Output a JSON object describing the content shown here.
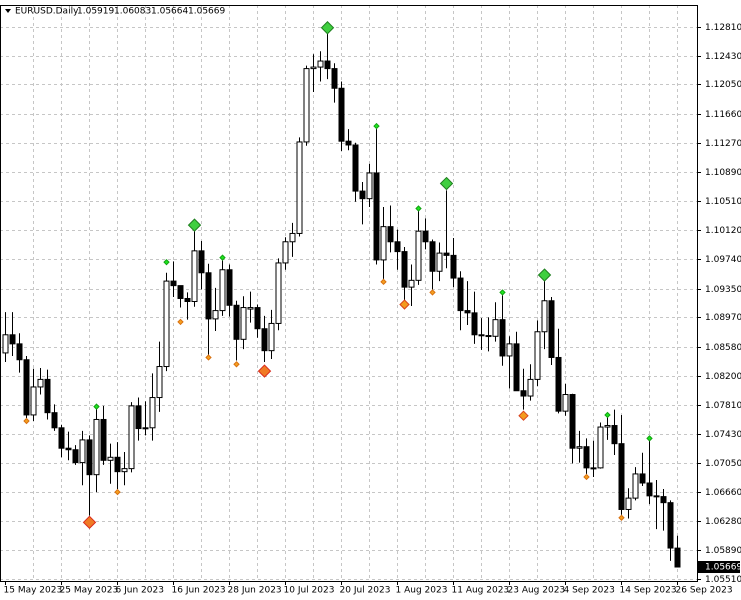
{
  "chart_data": {
    "type": "candlestick",
    "title": "EURUSD.Daily",
    "categories": [
      "15 May 2023",
      null,
      null,
      null,
      null,
      null,
      null,
      null,
      "25 May 2023",
      null,
      null,
      null,
      null,
      null,
      null,
      null,
      "6 Jun 2023",
      null,
      null,
      null,
      null,
      null,
      null,
      null,
      "16 Jun 2023",
      null,
      null,
      null,
      null,
      null,
      null,
      null,
      "28 Jun 2023",
      null,
      null,
      null,
      null,
      null,
      null,
      null,
      "10 Jul 2023",
      null,
      null,
      null,
      null,
      null,
      null,
      null,
      "20 Jul 2023",
      null,
      null,
      null,
      null,
      null,
      null,
      null,
      "1 Aug 2023",
      null,
      null,
      null,
      null,
      null,
      null,
      null,
      "11 Aug 2023",
      null,
      null,
      null,
      null,
      null,
      null,
      null,
      "23 Aug 2023",
      null,
      null,
      null,
      null,
      null,
      null,
      null,
      "4 Sep 2023",
      null,
      null,
      null,
      null,
      null,
      null,
      null,
      "14 Sep 2023",
      null,
      null,
      null,
      null,
      null,
      null,
      null,
      "26 Sep 2023"
    ],
    "ohlc": {
      "up_color": "#ffffff",
      "down_color": "#000000",
      "open": [
        1.085,
        1.0874,
        1.0862,
        1.0841,
        1.0768,
        1.0805,
        1.0815,
        1.0771,
        1.0751,
        1.0724,
        1.0722,
        1.0705,
        1.0735,
        1.0689,
        1.0762,
        1.0708,
        1.0712,
        1.0693,
        1.0697,
        1.078,
        1.075,
        1.0751,
        1.0791,
        1.0832,
        1.0945,
        1.0939,
        1.0922,
        1.0918,
        1.0985,
        1.0956,
        1.0895,
        1.0906,
        1.096,
        1.0913,
        1.0868,
        1.0908,
        1.091,
        1.0882,
        1.0853,
        1.0889,
        1.0969,
        1.0997,
        1.1008,
        1.1129,
        1.1226,
        1.1228,
        1.1236,
        1.1226,
        1.12,
        1.113,
        1.1125,
        1.1064,
        1.1054,
        1.1088,
        1.0973,
        1.1017,
        1.0997,
        1.0984,
        1.0937,
        1.0946,
        1.1011,
        1.0997,
        1.0958,
        1.0982,
        1.0979,
        1.0949,
        1.0906,
        1.0903,
        1.0874,
        1.0873,
        1.0872,
        1.0894,
        1.0846,
        1.0862,
        1.08,
        1.0793,
        1.0815,
        1.0878,
        1.0919,
        1.0844,
        1.0773,
        1.0795,
        1.0724,
        1.0726,
        1.0698,
        1.0698,
        1.0752,
        1.0754,
        1.073,
        1.0643,
        1.0658,
        1.069,
        1.0678,
        1.0661,
        1.066,
        1.0652,
        1.05919
      ],
      "high": [
        1.0904,
        1.0904,
        1.0876,
        1.0846,
        1.0829,
        1.083,
        1.0828,
        1.0782,
        1.0755,
        1.0746,
        1.0728,
        1.0747,
        1.0741,
        1.0776,
        1.078,
        1.073,
        1.0732,
        1.0719,
        1.0785,
        1.0791,
        1.0786,
        1.0823,
        1.0865,
        1.0956,
        1.0971,
        1.0939,
        1.093,
        1.1012,
        1.0998,
        1.0968,
        1.0936,
        1.0972,
        1.0967,
        1.0919,
        1.0925,
        1.0931,
        1.0914,
        1.0899,
        1.0907,
        1.0975,
        1.1003,
        1.1022,
        1.1135,
        1.123,
        1.1245,
        1.1249,
        1.1276,
        1.1233,
        1.1209,
        1.1146,
        1.1128,
        1.1076,
        1.11,
        1.1146,
        1.1043,
        1.1045,
        1.1013,
        1.099,
        1.0967,
        1.1038,
        1.1028,
        1.1,
        1.0996,
        1.1065,
        1.1002,
        1.0958,
        1.0945,
        1.0931,
        1.0896,
        1.0897,
        1.0917,
        1.0926,
        1.0872,
        1.0878,
        1.0829,
        1.0835,
        1.0893,
        1.0945,
        1.0924,
        1.0882,
        1.0809,
        1.0796,
        1.0747,
        1.0737,
        1.0734,
        1.0758,
        1.0765,
        1.0775,
        1.0768,
        1.0671,
        1.0699,
        1.0718,
        1.0734,
        1.0682,
        1.067,
        1.0655,
        1.06083
      ],
      "low": [
        1.0838,
        1.0846,
        1.0824,
        1.0764,
        1.076,
        1.0795,
        1.0762,
        1.0747,
        1.0712,
        1.0708,
        1.0702,
        1.0675,
        1.0635,
        1.0666,
        1.0702,
        1.0677,
        1.067,
        1.0675,
        1.0692,
        1.0734,
        1.0741,
        1.0734,
        1.0772,
        1.0826,
        1.0924,
        1.091,
        1.0894,
        1.0911,
        1.0934,
        1.0848,
        1.0879,
        1.0899,
        1.0898,
        1.084,
        1.0855,
        1.089,
        1.087,
        1.0838,
        1.0842,
        1.088,
        1.096,
        1.0977,
        1.1004,
        1.1124,
        1.1195,
        1.1209,
        1.1212,
        1.1181,
        1.1117,
        1.1118,
        1.105,
        1.102,
        1.1043,
        1.0967,
        1.0948,
        1.0983,
        1.096,
        1.092,
        1.0912,
        1.094,
        1.0987,
        1.0934,
        1.0945,
        1.0962,
        1.0937,
        1.088,
        1.0887,
        1.0862,
        1.0854,
        1.0852,
        1.0865,
        1.0833,
        1.0803,
        1.08,
        1.0775,
        1.0787,
        1.0806,
        1.0855,
        1.0834,
        1.077,
        1.0767,
        1.0704,
        1.0705,
        1.069,
        1.0686,
        1.0697,
        1.0735,
        1.0715,
        1.0636,
        1.0631,
        1.0655,
        1.0674,
        1.065,
        1.0617,
        1.0615,
        1.0575,
        1.05664
      ],
      "close": [
        1.0874,
        1.0862,
        1.0841,
        1.0768,
        1.0805,
        1.0815,
        1.0771,
        1.0751,
        1.0724,
        1.0722,
        1.0705,
        1.0735,
        1.0689,
        1.0762,
        1.0708,
        1.0712,
        1.0693,
        1.0697,
        1.078,
        1.075,
        1.0751,
        1.0791,
        1.0832,
        1.0945,
        1.0939,
        1.0922,
        1.0918,
        1.0985,
        1.0956,
        1.0895,
        1.0906,
        1.096,
        1.0913,
        1.0868,
        1.091,
        1.091,
        1.0882,
        1.0853,
        1.0889,
        1.0969,
        1.0997,
        1.1008,
        1.1129,
        1.1226,
        1.1228,
        1.1236,
        1.1226,
        1.12,
        1.113,
        1.1125,
        1.1064,
        1.1054,
        1.1088,
        1.0973,
        1.1017,
        1.0997,
        1.0984,
        1.0937,
        1.0946,
        1.1011,
        1.0997,
        1.0958,
        1.0982,
        1.0979,
        1.0949,
        1.0906,
        1.0903,
        1.0874,
        1.0873,
        1.0872,
        1.0894,
        1.0846,
        1.0862,
        1.08,
        1.0793,
        1.0815,
        1.0878,
        1.0919,
        1.0844,
        1.0773,
        1.0795,
        1.0724,
        1.0726,
        1.0698,
        1.0698,
        1.0752,
        1.0754,
        1.073,
        1.0643,
        1.0658,
        1.069,
        1.0678,
        1.0661,
        1.066,
        1.0652,
        1.0592,
        1.05669
      ]
    },
    "overlays": [
      {
        "marker": "large-diamond",
        "color": "#3fcf3f",
        "edge": "#1f7f1f",
        "values": [
          null,
          null,
          null,
          null,
          null,
          null,
          null,
          null,
          null,
          null,
          null,
          null,
          null,
          null,
          null,
          null,
          null,
          null,
          null,
          null,
          null,
          null,
          null,
          null,
          null,
          null,
          null,
          1.1019,
          null,
          null,
          null,
          null,
          null,
          null,
          null,
          null,
          null,
          null,
          null,
          null,
          null,
          null,
          null,
          null,
          null,
          null,
          1.128,
          null,
          null,
          null,
          null,
          null,
          null,
          null,
          null,
          null,
          null,
          null,
          null,
          null,
          null,
          null,
          null,
          1.1074,
          null,
          null,
          null,
          null,
          null,
          null,
          null,
          null,
          null,
          null,
          null,
          null,
          null,
          1.0953,
          null,
          null,
          null,
          null,
          null,
          null,
          null,
          null,
          null,
          null,
          null,
          null,
          null,
          null,
          null,
          null,
          null,
          null,
          null
        ]
      },
      {
        "marker": "large-diamond",
        "color": "#f07a24",
        "edge": "#d8281c",
        "values": [
          null,
          null,
          null,
          null,
          null,
          null,
          null,
          null,
          null,
          null,
          null,
          null,
          1.0626,
          null,
          null,
          null,
          null,
          null,
          null,
          null,
          null,
          null,
          null,
          null,
          null,
          null,
          null,
          null,
          null,
          null,
          null,
          null,
          null,
          null,
          null,
          null,
          null,
          1.0826,
          null,
          null,
          null,
          null,
          null,
          null,
          null,
          null,
          null,
          null,
          null,
          null,
          null,
          null,
          null,
          null,
          null,
          null,
          null,
          null,
          null,
          null,
          null,
          null,
          null,
          null,
          null,
          null,
          null,
          null,
          null,
          null,
          null,
          null,
          null,
          null,
          null,
          null,
          null,
          null,
          null,
          null,
          null,
          null,
          null,
          null,
          null,
          null,
          null,
          null,
          null,
          null,
          null,
          null,
          null,
          null,
          null,
          null,
          null
        ]
      },
      {
        "marker": "medium-diamond",
        "color": "#f39a1e",
        "edge": "#d8401c",
        "values": [
          null,
          null,
          null,
          null,
          null,
          null,
          null,
          null,
          null,
          null,
          null,
          null,
          null,
          null,
          null,
          null,
          null,
          null,
          null,
          null,
          null,
          null,
          null,
          null,
          null,
          null,
          null,
          null,
          null,
          null,
          null,
          null,
          null,
          null,
          null,
          null,
          null,
          null,
          null,
          null,
          null,
          null,
          null,
          null,
          null,
          null,
          null,
          null,
          null,
          null,
          null,
          null,
          null,
          null,
          null,
          null,
          null,
          1.0914,
          null,
          null,
          null,
          null,
          null,
          null,
          null,
          null,
          null,
          null,
          null,
          null,
          null,
          null,
          null,
          null,
          1.0767,
          null,
          null,
          null,
          null,
          null,
          null,
          null,
          null,
          null,
          null,
          null,
          null,
          null,
          null,
          null,
          null,
          null,
          null,
          null,
          null,
          null,
          null
        ]
      },
      {
        "marker": "small-diamond",
        "color": "#1ee61e",
        "edge": "#12a012",
        "values": [
          null,
          null,
          null,
          null,
          null,
          null,
          null,
          null,
          null,
          null,
          null,
          null,
          null,
          1.0779,
          null,
          null,
          null,
          null,
          null,
          null,
          null,
          null,
          null,
          1.097,
          null,
          null,
          null,
          null,
          null,
          null,
          null,
          1.0976,
          null,
          null,
          null,
          null,
          null,
          null,
          null,
          null,
          null,
          null,
          null,
          null,
          null,
          null,
          null,
          null,
          null,
          null,
          null,
          null,
          null,
          1.115,
          null,
          null,
          null,
          null,
          null,
          1.1041,
          null,
          null,
          null,
          null,
          null,
          null,
          null,
          null,
          null,
          null,
          null,
          1.093,
          null,
          null,
          null,
          null,
          null,
          null,
          null,
          null,
          null,
          null,
          null,
          null,
          null,
          null,
          1.0768,
          null,
          null,
          null,
          null,
          null,
          1.0737,
          null,
          null,
          null,
          null
        ]
      },
      {
        "marker": "small-diamond",
        "color": "#f5a020",
        "edge": "#d87010",
        "values": [
          null,
          null,
          null,
          1.076,
          null,
          null,
          null,
          null,
          null,
          null,
          null,
          null,
          null,
          null,
          null,
          null,
          1.0666,
          null,
          null,
          null,
          null,
          null,
          null,
          null,
          null,
          1.0891,
          null,
          null,
          null,
          1.0844,
          null,
          null,
          null,
          1.0835,
          null,
          null,
          null,
          null,
          null,
          null,
          null,
          null,
          null,
          null,
          null,
          null,
          null,
          null,
          null,
          null,
          null,
          null,
          null,
          null,
          1.0944,
          null,
          null,
          null,
          null,
          null,
          null,
          1.093,
          null,
          null,
          null,
          null,
          null,
          null,
          null,
          null,
          null,
          null,
          null,
          null,
          null,
          null,
          null,
          null,
          null,
          null,
          null,
          null,
          null,
          1.0686,
          null,
          null,
          null,
          null,
          1.0632,
          null,
          null,
          null,
          null,
          null,
          null,
          null,
          null
        ]
      }
    ],
    "ylim": [
      1.05484,
      1.13101
    ],
    "yticks": [
      {
        "value": 1.1281,
        "label": "1.12810"
      },
      {
        "value": 1.1243,
        "label": "1.12430"
      },
      {
        "value": 1.1205,
        "label": "1.12050"
      },
      {
        "value": 1.1166,
        "label": "1.11660"
      },
      {
        "value": 1.1127,
        "label": "1.11270"
      },
      {
        "value": 1.1089,
        "label": "1.10890"
      },
      {
        "value": 1.1051,
        "label": "1.10510"
      },
      {
        "value": 1.1012,
        "label": "1.10120"
      },
      {
        "value": 1.0974,
        "label": "1.09740"
      },
      {
        "value": 1.0935,
        "label": "1.09350"
      },
      {
        "value": 1.0897,
        "label": "1.08970"
      },
      {
        "value": 1.0858,
        "label": "1.08580"
      },
      {
        "value": 1.082,
        "label": "1.08200"
      },
      {
        "value": 1.0781,
        "label": "1.07810"
      },
      {
        "value": 1.0743,
        "label": "1.07430"
      },
      {
        "value": 1.0705,
        "label": "1.07050"
      },
      {
        "value": 1.0666,
        "label": "1.06660"
      },
      {
        "value": 1.0628,
        "label": "1.06280"
      },
      {
        "value": 1.0589,
        "label": "1.05890"
      },
      {
        "value": 1.0551,
        "label": "1.05510"
      }
    ],
    "grid": true
  }
}
